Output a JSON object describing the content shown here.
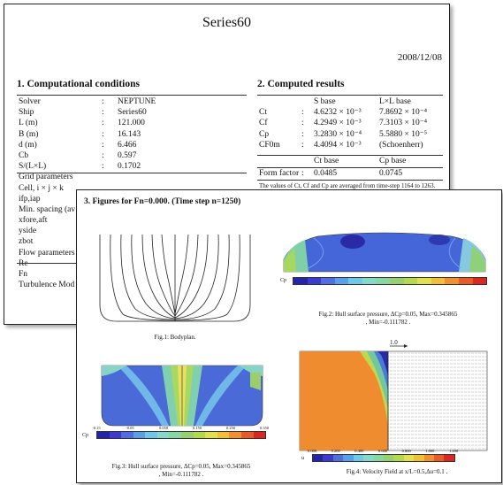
{
  "header": {
    "title": "Series60",
    "date": "2008/12/08"
  },
  "conditions": {
    "title": "1. Computational conditions",
    "rows": [
      {
        "label": "Solver",
        "sep": ":",
        "value": "NEPTUNE"
      },
      {
        "label": "Ship",
        "sep": ":",
        "value": "Series60"
      },
      {
        "label": "L     (m)",
        "sep": ":",
        "value": "121.000"
      },
      {
        "label": "B     (m)",
        "sep": ":",
        "value": "16.143"
      },
      {
        "label": "d     (m)",
        "sep": ":",
        "value": "6.466"
      },
      {
        "label": "Cb",
        "sep": ":",
        "value": "0.597"
      },
      {
        "label": "S/(L×L)",
        "sep": ":",
        "value": "0.1702"
      },
      {
        "label": "Grid parameters",
        "sep": "",
        "value": ""
      },
      {
        "label": "Cell,  i × j × k",
        "sep": "",
        "value": ""
      },
      {
        "label": "ifp,iap",
        "sep": "",
        "value": ""
      },
      {
        "label": "Min. spacing (av",
        "sep": "",
        "value": ""
      },
      {
        "label": "xfore,aft",
        "sep": "",
        "value": ""
      },
      {
        "label": "yside",
        "sep": "",
        "value": ""
      },
      {
        "label": "zbot",
        "sep": "",
        "value": ""
      },
      {
        "label": "Flow parameters",
        "sep": "",
        "value": ""
      },
      {
        "label": "Re",
        "sep": "",
        "value": ""
      },
      {
        "label": "Fn",
        "sep": "",
        "value": ""
      },
      {
        "label": "Turbulence Mod",
        "sep": "",
        "value": ""
      }
    ]
  },
  "results": {
    "title": "2. Computed results",
    "col_s": "S base",
    "col_l": "L×L base",
    "rows": [
      {
        "label": "Ct",
        "sep": ":",
        "s": "4.6232 × 10⁻³",
        "l": "7.8692 × 10⁻⁴"
      },
      {
        "label": "Cf",
        "sep": ":",
        "s": "4.2949 × 10⁻³",
        "l": "7.3103 × 10⁻⁴"
      },
      {
        "label": "Cp",
        "sep": ":",
        "s": "3.2830 × 10⁻⁴",
        "l": "5.5880 × 10⁻⁵"
      },
      {
        "label": "CF0m",
        "sep": ":",
        "s": "4.4094 × 10⁻³",
        "l": "(Schoenherr)"
      }
    ],
    "col_ct": "Ct base",
    "col_cp": "Cp base",
    "form_factor_label": "Form factor",
    "form_factor_sep": ":",
    "form_factor_ct": "0.0485",
    "form_factor_cp": "0.0745",
    "note": "The values of Ct, Cf and Cp are averaged from time-step 1164 to 1263."
  },
  "figures": {
    "title": "3. Figures for Fn=0.000.  (Time step n=1250)",
    "fig1_caption": "Fig.1: Bodyplan.",
    "fig2_caption_1": "Fig.2: Hull surface pressure, ΔCp=0.05, Max=0.345865",
    "fig2_caption_2": ", Min=-0.111782 .",
    "fig3_caption_1": "Fig.3: Hull surface pressure, ΔCp=0.05, Max=0.345865",
    "fig3_caption_2": ", Min=-0.111782 .",
    "fig4_caption": "Fig.4: Velocity Field at x/L=0.5,Δu=0.1 .",
    "cp_label": "Cp",
    "u_label": "u",
    "vec_ref": "1.0",
    "cp_ticks": [
      "-0.15",
      "-0.05",
      "0.050",
      "0.150",
      "0.250",
      "0.350"
    ],
    "u_ticks": [
      "0.000",
      "0.200",
      "0.400",
      "0.600",
      "0.800",
      "1.000",
      "1.200"
    ]
  },
  "palette": [
    "#2424a8",
    "#3b3bd0",
    "#4f6fe0",
    "#5aa0e8",
    "#70c8e8",
    "#86d8c8",
    "#8ad6a0",
    "#96d070",
    "#b4d850",
    "#e0e050",
    "#f0c038",
    "#f09030",
    "#e85a28",
    "#d82820"
  ]
}
